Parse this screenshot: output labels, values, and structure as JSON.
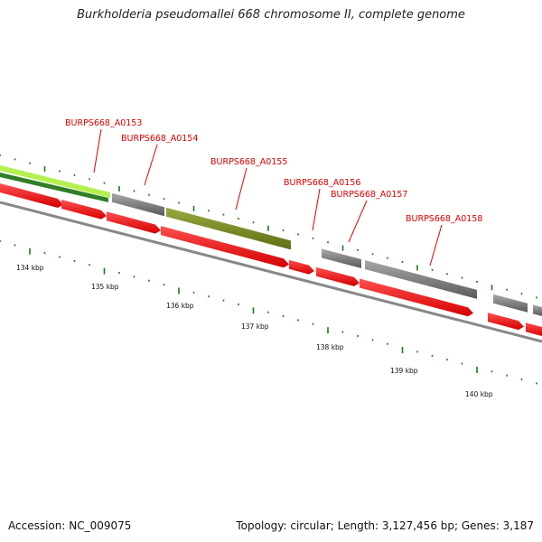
{
  "header": {
    "title": "Burkholderia pseudomallei 668 chromosome II, complete genome"
  },
  "footer": {
    "accession": "Accession: NC_009075",
    "summary": "Topology: circular; Length: 3,127,456 bp; Genes: 3,187"
  },
  "colors": {
    "gene_label": "#dd0000",
    "cds_forward": "#ff0000",
    "orf_grey": "#7a7a7a",
    "orf_olive": "#7a8c22",
    "orf_lime": "#a8ee44",
    "orf_green": "#3a8a2a",
    "backbone": "#888888",
    "tick": "#1a7a1a"
  },
  "gene_labels": [
    "BURPS668_A0153",
    "BURPS668_A0154",
    "BURPS668_A0155",
    "BURPS668_A0156",
    "BURPS668_A0157",
    "BURPS668_A0158"
  ],
  "scale_labels": [
    "134 kbp",
    "135 kbp",
    "136 kbp",
    "137 kbp",
    "138 kbp",
    "139 kbp",
    "140 kbp"
  ]
}
